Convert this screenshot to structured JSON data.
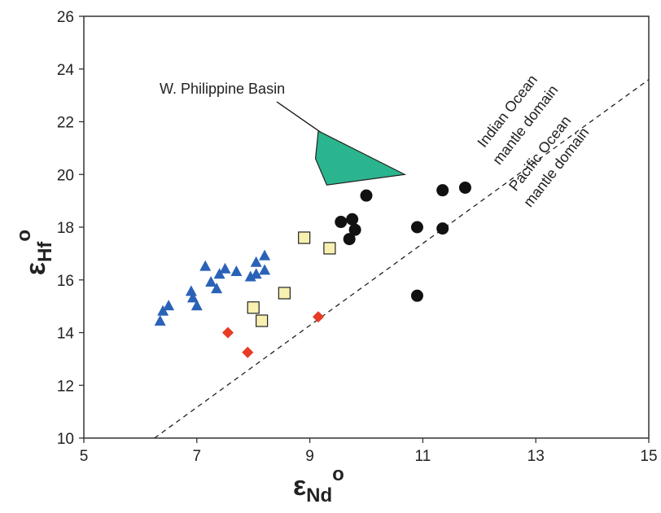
{
  "chart_data": {
    "type": "scatter",
    "x_label": {
      "symbol": "ε",
      "sub": "Nd",
      "sup": "o"
    },
    "y_label": {
      "symbol": "ε",
      "sub": "Hf",
      "sup": "o"
    },
    "xlim": [
      5,
      15
    ],
    "ylim": [
      10,
      26
    ],
    "xticks": [
      5,
      7,
      9,
      11,
      13,
      15
    ],
    "yticks": [
      10,
      12,
      14,
      16,
      18,
      20,
      22,
      24,
      26
    ],
    "series": [
      {
        "marker": "triangle",
        "color": "#2a62b8",
        "x": [
          6.35,
          6.4,
          6.5,
          6.9,
          6.93,
          7.0,
          7.15,
          7.25,
          7.35,
          7.4,
          7.5,
          7.7,
          7.95,
          8.05,
          8.05,
          8.2,
          8.2
        ],
        "values": [
          14.42,
          14.8,
          15.0,
          15.55,
          15.3,
          15.0,
          16.5,
          15.9,
          15.65,
          16.2,
          16.4,
          16.3,
          16.1,
          16.2,
          16.65,
          16.35,
          16.9
        ]
      },
      {
        "marker": "square",
        "color": "#f7f0b0",
        "x": [
          8.9,
          9.35,
          8.55,
          8.0,
          8.15
        ],
        "values": [
          17.6,
          17.2,
          15.5,
          14.95,
          14.45
        ]
      },
      {
        "marker": "diamond",
        "color": "#e83a24",
        "x": [
          7.55,
          7.9,
          9.15
        ],
        "values": [
          14.0,
          13.25,
          14.6
        ]
      },
      {
        "marker": "circle",
        "color": "#111111",
        "x": [
          9.55,
          9.75,
          9.8,
          9.7,
          10.0,
          10.9,
          11.35,
          11.75,
          11.35,
          10.9
        ],
        "values": [
          18.2,
          18.3,
          17.9,
          17.55,
          19.2,
          18.0,
          19.4,
          19.5,
          17.95,
          15.4
        ]
      }
    ],
    "region": {
      "label": "W. Philippine Basin",
      "color": "#2bb58f",
      "x": [
        9.15,
        10.68,
        9.3,
        9.1
      ],
      "values": [
        21.65,
        20.0,
        19.6,
        20.6
      ]
    },
    "reference_line": {
      "x": [
        6.25,
        15
      ],
      "values": [
        10,
        23.6
      ]
    },
    "annotations": [
      "Indian Ocean",
      "mantle domain",
      "Pacific Ocean",
      "mantle domain"
    ]
  }
}
